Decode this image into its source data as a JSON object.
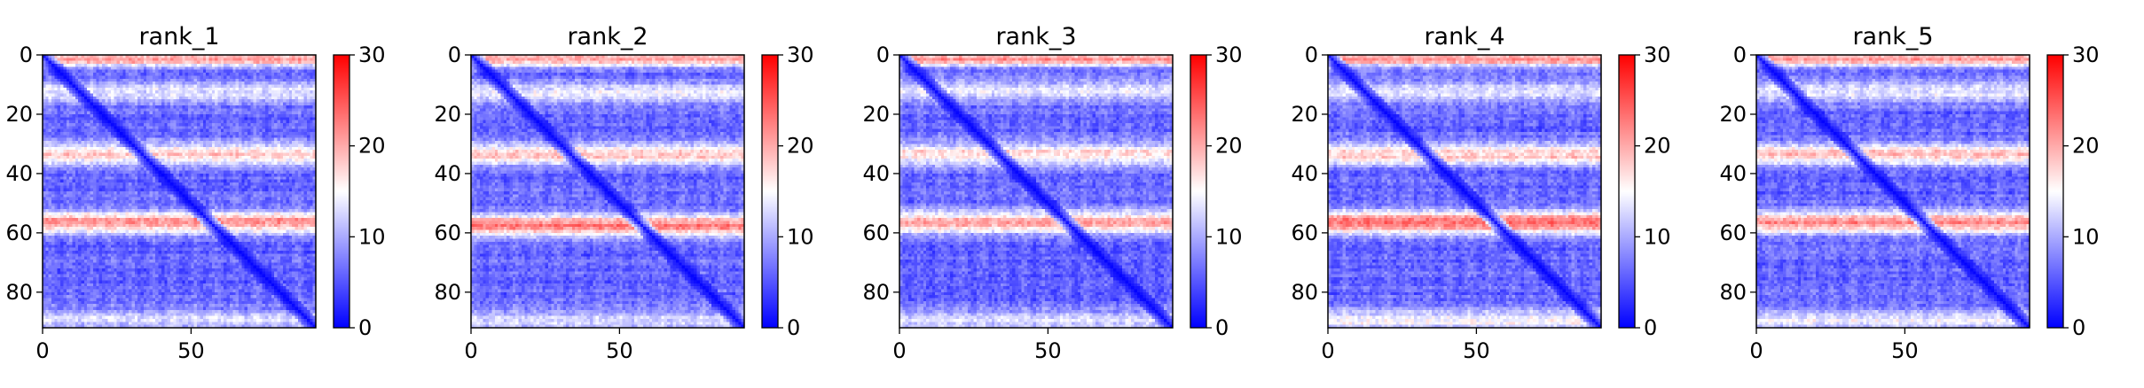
{
  "chart_data": [
    {
      "type": "heatmap",
      "title": "rank_1",
      "x_ticks": [
        0,
        50
      ],
      "y_ticks": [
        0,
        20,
        40,
        60,
        80
      ],
      "xlim": [
        0,
        92
      ],
      "ylim": [
        92,
        0
      ],
      "colorbar": {
        "ticks": [
          0,
          10,
          20,
          30
        ],
        "range": [
          0,
          30
        ],
        "colormap": "bwr"
      },
      "colors": {
        "low": "#0000ff",
        "mid": "#ffffff",
        "high": "#ff0000"
      },
      "description_bands": [
        {
          "row_center": 1,
          "intensity": 0.7
        },
        {
          "row_center": 12,
          "intensity": 0.35
        },
        {
          "row_center": 33,
          "intensity": 0.55
        },
        {
          "row_center": 56,
          "intensity": 0.7
        },
        {
          "row_center": 89,
          "intensity": 0.3
        }
      ]
    },
    {
      "type": "heatmap",
      "title": "rank_2",
      "x_ticks": [
        0,
        50
      ],
      "y_ticks": [
        0,
        20,
        40,
        60,
        80
      ],
      "xlim": [
        0,
        92
      ],
      "ylim": [
        92,
        0
      ],
      "colorbar": {
        "ticks": [
          0,
          10,
          20,
          30
        ],
        "range": [
          0,
          30
        ],
        "colormap": "bwr"
      },
      "colors": {
        "low": "#0000ff",
        "mid": "#ffffff",
        "high": "#ff0000"
      },
      "description_bands": [
        {
          "row_center": 1,
          "intensity": 0.7
        },
        {
          "row_center": 12,
          "intensity": 0.35
        },
        {
          "row_center": 33,
          "intensity": 0.55
        },
        {
          "row_center": 57,
          "intensity": 0.75
        },
        {
          "row_center": 89,
          "intensity": 0.3
        }
      ]
    },
    {
      "type": "heatmap",
      "title": "rank_3",
      "x_ticks": [
        0,
        50
      ],
      "y_ticks": [
        0,
        20,
        40,
        60,
        80
      ],
      "xlim": [
        0,
        92
      ],
      "ylim": [
        92,
        0
      ],
      "colorbar": {
        "ticks": [
          0,
          10,
          20,
          30
        ],
        "range": [
          0,
          30
        ],
        "colormap": "bwr"
      },
      "colors": {
        "low": "#0000ff",
        "mid": "#ffffff",
        "high": "#ff0000"
      },
      "description_bands": [
        {
          "row_center": 1,
          "intensity": 0.7
        },
        {
          "row_center": 12,
          "intensity": 0.35
        },
        {
          "row_center": 33,
          "intensity": 0.5
        },
        {
          "row_center": 56,
          "intensity": 0.65
        },
        {
          "row_center": 89,
          "intensity": 0.3
        }
      ]
    },
    {
      "type": "heatmap",
      "title": "rank_4",
      "x_ticks": [
        0,
        50
      ],
      "y_ticks": [
        0,
        20,
        40,
        60,
        80
      ],
      "xlim": [
        0,
        92
      ],
      "ylim": [
        92,
        0
      ],
      "colorbar": {
        "ticks": [
          0,
          10,
          20,
          30
        ],
        "range": [
          0,
          30
        ],
        "colormap": "bwr"
      },
      "colors": {
        "low": "#0000ff",
        "mid": "#ffffff",
        "high": "#ff0000"
      },
      "description_bands": [
        {
          "row_center": 1,
          "intensity": 0.7
        },
        {
          "row_center": 12,
          "intensity": 0.35
        },
        {
          "row_center": 33,
          "intensity": 0.55
        },
        {
          "row_center": 56,
          "intensity": 0.8
        },
        {
          "row_center": 89,
          "intensity": 0.4
        }
      ]
    },
    {
      "type": "heatmap",
      "title": "rank_5",
      "x_ticks": [
        0,
        50
      ],
      "y_ticks": [
        0,
        20,
        40,
        60,
        80
      ],
      "xlim": [
        0,
        92
      ],
      "ylim": [
        92,
        0
      ],
      "colorbar": {
        "ticks": [
          0,
          10,
          20,
          30
        ],
        "range": [
          0,
          30
        ],
        "colormap": "bwr"
      },
      "colors": {
        "low": "#0000ff",
        "mid": "#ffffff",
        "high": "#ff0000"
      },
      "description_bands": [
        {
          "row_center": 1,
          "intensity": 0.7
        },
        {
          "row_center": 12,
          "intensity": 0.35
        },
        {
          "row_center": 33,
          "intensity": 0.55
        },
        {
          "row_center": 56,
          "intensity": 0.7
        },
        {
          "row_center": 89,
          "intensity": 0.35
        }
      ]
    }
  ]
}
